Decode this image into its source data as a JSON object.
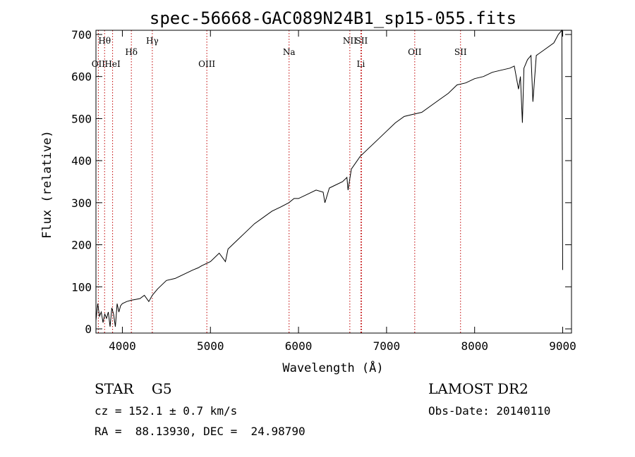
{
  "chart_data": {
    "type": "line",
    "title": "spec-56668-GAC089N24B1_sp15-055.fits",
    "xlabel": "Wavelength (Å)",
    "ylabel": "Flux (relative)",
    "xlim": [
      3700,
      9100
    ],
    "ylim": [
      -10,
      710
    ],
    "xticks": [
      4000,
      5000,
      6000,
      7000,
      8000,
      9000
    ],
    "yticks": [
      0,
      100,
      200,
      300,
      400,
      500,
      600,
      700
    ],
    "grid": false,
    "series": [
      {
        "x": [
          3700,
          3720,
          3740,
          3760,
          3780,
          3800,
          3820,
          3840,
          3860,
          3880,
          3900,
          3920,
          3940,
          3960,
          3980,
          4000,
          4050,
          4100,
          4150,
          4200,
          4250,
          4300,
          4340,
          4360,
          4400,
          4450,
          4500,
          4600,
          4700,
          4800,
          4860,
          4900,
          5000,
          5100,
          5170,
          5200,
          5300,
          5400,
          5500,
          5600,
          5700,
          5800,
          5890,
          5950,
          6000,
          6100,
          6200,
          6280,
          6300,
          6350,
          6400,
          6500,
          6550,
          6563,
          6600,
          6700,
          6800,
          6900,
          7000,
          7100,
          7200,
          7300,
          7400,
          7500,
          7600,
          7700,
          7750,
          7800,
          7900,
          8000,
          8100,
          8200,
          8300,
          8400,
          8450,
          8498,
          8520,
          8542,
          8560,
          8600,
          8640,
          8662,
          8700,
          8800,
          8900,
          8950,
          8990,
          9000
        ],
        "values": [
          20,
          60,
          30,
          40,
          15,
          35,
          25,
          40,
          5,
          50,
          35,
          5,
          60,
          40,
          55,
          60,
          65,
          68,
          70,
          72,
          80,
          65,
          80,
          85,
          95,
          105,
          115,
          120,
          130,
          140,
          145,
          150,
          160,
          180,
          160,
          190,
          210,
          230,
          250,
          265,
          280,
          290,
          300,
          310,
          310,
          320,
          330,
          325,
          300,
          335,
          340,
          350,
          360,
          330,
          380,
          410,
          430,
          450,
          470,
          490,
          505,
          510,
          515,
          530,
          545,
          560,
          570,
          580,
          585,
          595,
          600,
          610,
          615,
          620,
          625,
          570,
          600,
          490,
          620,
          640,
          650,
          540,
          650,
          665,
          680,
          700,
          710,
          140
        ]
      }
    ],
    "lines": [
      {
        "label": "Hθ",
        "x": 3798,
        "row": 1
      },
      {
        "label": "OII",
        "x": 3727,
        "row": 3
      },
      {
        "label": "HeI",
        "x": 3889,
        "row": 3
      },
      {
        "label": "Hδ",
        "x": 4102,
        "row": 2
      },
      {
        "label": "Hγ",
        "x": 4340,
        "row": 1
      },
      {
        "label": "OIII",
        "x": 4959,
        "row": 3
      },
      {
        "label": "Na",
        "x": 5893,
        "row": 2
      },
      {
        "label": "NII",
        "x": 6583,
        "row": 1
      },
      {
        "label": "SII",
        "x": 6716,
        "row": 1
      },
      {
        "label": "Li",
        "x": 6708,
        "row": 3
      },
      {
        "label": "OII",
        "x": 7320,
        "row": 2
      },
      {
        "label": "SII",
        "x": 7840,
        "row": 2
      }
    ]
  },
  "annotations": {
    "object_class": "STAR    G5",
    "survey": "LAMOST DR2",
    "redshift": "cz = 152.1 ± 0.7 km/s",
    "obs_date": "Obs-Date: 20140110",
    "coords": "RA =  88.13930, DEC =  24.98790"
  }
}
